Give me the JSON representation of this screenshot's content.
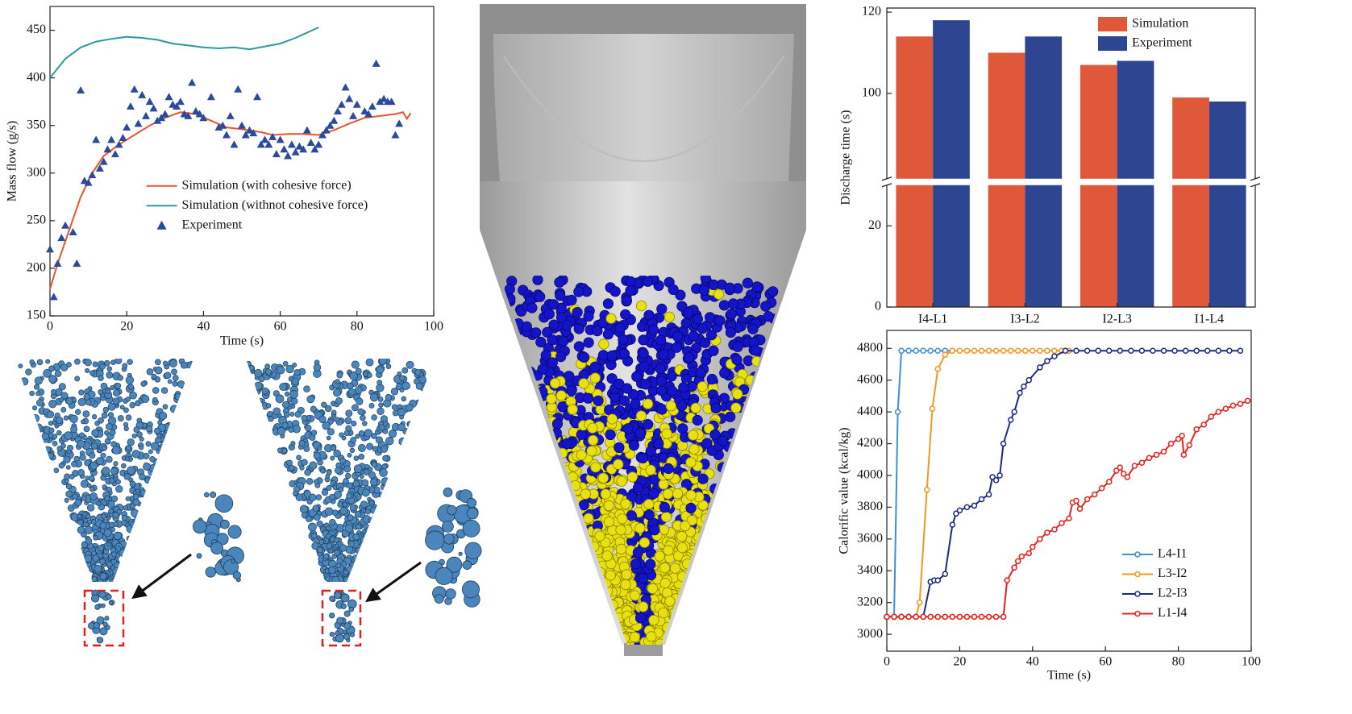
{
  "chart_data": [
    {
      "type": "line",
      "xlabel": "Time (s)",
      "ylabel": "Mass flow (g/s)",
      "xlim": [
        0,
        100
      ],
      "ylim": [
        150,
        475
      ],
      "xticks": [
        0,
        20,
        40,
        60,
        80,
        100
      ],
      "yticks": [
        150,
        200,
        250,
        300,
        350,
        400,
        450
      ],
      "legend": "center-right",
      "series": [
        {
          "name": "Simulation (with cohesive force)",
          "color": "#e8542c",
          "style": "line",
          "x": [
            0,
            2,
            5,
            8,
            11,
            14,
            18,
            22,
            26,
            30,
            34,
            38,
            42,
            46,
            50,
            55,
            58,
            62,
            66,
            70,
            74,
            78,
            82,
            86,
            90,
            92,
            93,
            94
          ],
          "values": [
            178,
            205,
            240,
            275,
            300,
            318,
            330,
            340,
            350,
            358,
            364,
            362,
            355,
            348,
            346,
            343,
            340,
            341,
            341,
            340,
            345,
            352,
            358,
            360,
            362,
            364,
            357,
            363
          ]
        },
        {
          "name": "Simulation (withnot cohesive force)",
          "color": "#2a9a9a",
          "style": "line",
          "x": [
            0,
            4,
            8,
            12,
            16,
            20,
            24,
            28,
            32,
            36,
            40,
            44,
            48,
            52,
            56,
            60,
            64,
            70
          ],
          "values": [
            400,
            420,
            432,
            438,
            441,
            443,
            442,
            440,
            436,
            434,
            432,
            431,
            432,
            430,
            433,
            436,
            442,
            453
          ]
        },
        {
          "name": "Experiment",
          "color": "#2b4a9a",
          "style": "markers",
          "x": [
            0,
            1,
            2,
            3,
            4,
            6,
            7,
            8,
            9,
            10,
            11,
            12,
            13,
            14,
            15,
            16,
            17,
            18,
            19,
            20,
            21,
            22,
            23,
            24,
            25,
            26,
            27,
            28,
            29,
            30,
            31,
            32,
            33,
            34,
            35,
            36,
            37,
            38,
            39,
            40,
            42,
            44,
            45,
            46,
            47,
            48,
            49,
            50,
            51,
            52,
            53,
            54,
            55,
            56,
            57,
            58,
            59,
            60,
            61,
            62,
            63,
            64,
            65,
            66,
            67,
            68,
            69,
            70,
            71,
            72,
            73,
            74,
            75,
            76,
            77,
            78,
            79,
            80,
            82,
            83,
            84,
            85,
            86,
            87,
            88,
            89,
            90,
            91
          ],
          "values": [
            220,
            170,
            205,
            232,
            245,
            238,
            205,
            387,
            292,
            290,
            298,
            335,
            305,
            312,
            325,
            335,
            320,
            330,
            337,
            348,
            370,
            388,
            352,
            382,
            360,
            375,
            368,
            355,
            358,
            362,
            380,
            372,
            370,
            375,
            362,
            360,
            395,
            365,
            362,
            358,
            380,
            348,
            350,
            340,
            360,
            330,
            388,
            350,
            340,
            345,
            342,
            380,
            330,
            335,
            330,
            338,
            320,
            335,
            325,
            318,
            330,
            322,
            328,
            325,
            345,
            332,
            325,
            330,
            340,
            345,
            350,
            355,
            365,
            372,
            390,
            378,
            360,
            372,
            365,
            362,
            370,
            415,
            375,
            378,
            375,
            375,
            340,
            352
          ]
        }
      ]
    },
    {
      "type": "bar",
      "ylabel": "Discharge time (s)",
      "categories": [
        "I4-L1",
        "I3-L2",
        "I2-L3",
        "I1-L4"
      ],
      "ylim": [
        0,
        121
      ],
      "ybreak": [
        30,
        79
      ],
      "yticks": [
        0,
        20,
        100,
        120
      ],
      "legend": "upper-right",
      "series": [
        {
          "name": "Simulation",
          "color": "#e0583a",
          "values": [
            114,
            110,
            107,
            99
          ]
        },
        {
          "name": "Experiment",
          "color": "#2e4591",
          "values": [
            118,
            114,
            108,
            98
          ]
        }
      ]
    },
    {
      "type": "line",
      "xlabel": "Time (s)",
      "ylabel": "Calorific value (kcal/kg)",
      "xlim": [
        0,
        100
      ],
      "ylim": [
        2894,
        4913
      ],
      "xticks": [
        0,
        20,
        40,
        60,
        80,
        100
      ],
      "yticks": [
        3000,
        3200,
        3400,
        3600,
        3800,
        4000,
        4200,
        4400,
        4600,
        4800
      ],
      "legend": "lower-right",
      "marker": "circle",
      "series": [
        {
          "name": "L4-I1",
          "color": "#3d8fd6",
          "style": "line",
          "x": [
            0,
            2,
            3,
            4,
            6,
            8,
            10,
            12,
            14,
            16,
            18
          ],
          "values": [
            3110,
            3110,
            4400,
            4785,
            4785,
            4785,
            4785,
            4785,
            4785,
            4785,
            4785
          ]
        },
        {
          "name": "L3-I2",
          "color": "#f5961e",
          "style": "line",
          "x": [
            0,
            2,
            4,
            6,
            8,
            9,
            11,
            12.5,
            14,
            16,
            18,
            20,
            22,
            24,
            26,
            28,
            30,
            32,
            34,
            36,
            38,
            40,
            42,
            44,
            46,
            48,
            50
          ],
          "values": [
            3110,
            3110,
            3110,
            3110,
            3110,
            3200,
            3910,
            4420,
            4670,
            4760,
            4785,
            4785,
            4785,
            4785,
            4785,
            4785,
            4785,
            4785,
            4785,
            4785,
            4785,
            4785,
            4785,
            4785,
            4785,
            4785,
            4785
          ]
        },
        {
          "name": "L2-I3",
          "color": "#1c2a80",
          "style": "line",
          "x": [
            0,
            2,
            4,
            6,
            8,
            10,
            12,
            13,
            14,
            16,
            18,
            19,
            20,
            22,
            24,
            26,
            28,
            29,
            30,
            31,
            32,
            34,
            35,
            36.5,
            37.6,
            39,
            42,
            44,
            46,
            49,
            52,
            55,
            58,
            61,
            64,
            67,
            70,
            73,
            76,
            79,
            82,
            85,
            88,
            91,
            94,
            97
          ],
          "values": [
            3110,
            3110,
            3110,
            3110,
            3110,
            3110,
            3330,
            3340,
            3340,
            3380,
            3690,
            3760,
            3780,
            3800,
            3810,
            3850,
            3880,
            3990,
            3970,
            4000,
            4200,
            4350,
            4400,
            4520,
            4560,
            4600,
            4680,
            4720,
            4750,
            4785,
            4785,
            4785,
            4785,
            4785,
            4785,
            4785,
            4785,
            4785,
            4785,
            4785,
            4785,
            4785,
            4785,
            4785,
            4785,
            4785
          ]
        },
        {
          "name": "L1-I4",
          "color": "#e4241c",
          "style": "line",
          "x": [
            0,
            2,
            4,
            6,
            8,
            10,
            12,
            14,
            16,
            18,
            20,
            22,
            24,
            26,
            28,
            30,
            32,
            33,
            35,
            36,
            37,
            39,
            40,
            42,
            44,
            46,
            48,
            50,
            51,
            52,
            53,
            55,
            57,
            59,
            61,
            63,
            64,
            65,
            66,
            68,
            70,
            72,
            74,
            76,
            78,
            80,
            81,
            81.5,
            83,
            85,
            87,
            89,
            91,
            93,
            95,
            97,
            99
          ],
          "values": [
            3110,
            3110,
            3110,
            3110,
            3110,
            3110,
            3110,
            3110,
            3110,
            3110,
            3110,
            3110,
            3110,
            3110,
            3110,
            3110,
            3110,
            3340,
            3420,
            3460,
            3490,
            3510,
            3550,
            3600,
            3640,
            3660,
            3700,
            3730,
            3830,
            3840,
            3790,
            3850,
            3880,
            3920,
            3960,
            4030,
            4050,
            4010,
            3990,
            4060,
            4080,
            4110,
            4130,
            4150,
            4200,
            4230,
            4250,
            4130,
            4190,
            4290,
            4320,
            4370,
            4400,
            4420,
            4440,
            4450,
            4470
          ]
        }
      ]
    }
  ]
}
